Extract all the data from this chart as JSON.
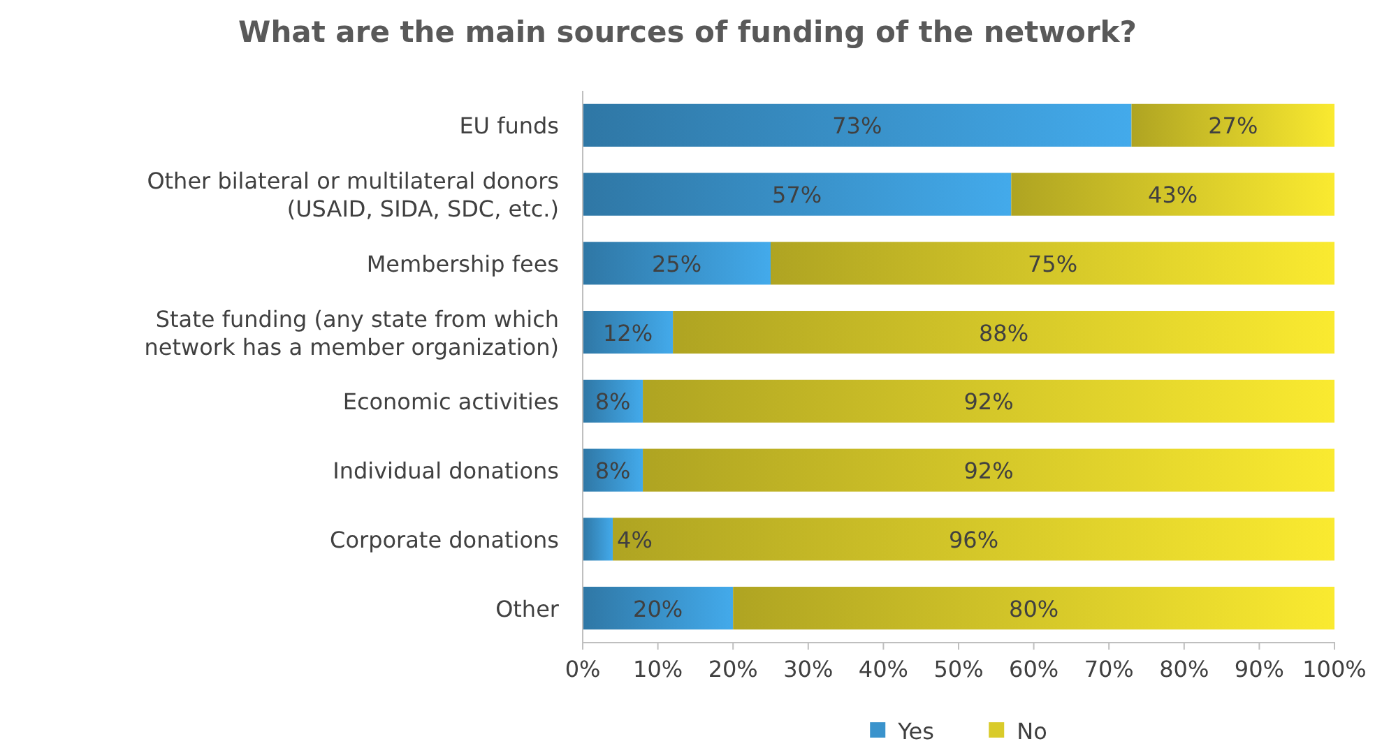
{
  "chart_data": {
    "type": "bar",
    "orientation": "horizontal",
    "stacked": true,
    "title": "What are the main sources of funding of the network?",
    "categories": [
      "EU funds",
      "Other bilateral or multilateral donors (USAID, SIDA, SDC, etc.)",
      "Membership fees",
      "State funding (any state from which network has a member organization)",
      "Economic activities",
      "Individual donations",
      "Corporate donations",
      "Other"
    ],
    "series": [
      {
        "name": "Yes",
        "color": "#3a93cc",
        "values": [
          73,
          57,
          25,
          12,
          8,
          8,
          4,
          20
        ],
        "value_labels": [
          "73%",
          "57%",
          "25%",
          "12%",
          "8%",
          "8%",
          "4%",
          "20%"
        ]
      },
      {
        "name": "No",
        "color": "#d9cb2a",
        "values": [
          27,
          43,
          75,
          88,
          92,
          92,
          96,
          80
        ],
        "value_labels": [
          "27%",
          "43%",
          "75%",
          "88%",
          "92%",
          "92%",
          "96%",
          "80%"
        ]
      }
    ],
    "xlim": [
      0,
      100
    ],
    "xticks": [
      {
        "value": 0,
        "label": "0%"
      },
      {
        "value": 10,
        "label": "10%"
      },
      {
        "value": 20,
        "label": "20%"
      },
      {
        "value": 30,
        "label": "30%"
      },
      {
        "value": 40,
        "label": "40%"
      },
      {
        "value": 50,
        "label": "50%"
      },
      {
        "value": 60,
        "label": "60%"
      },
      {
        "value": 70,
        "label": "70%"
      },
      {
        "value": 80,
        "label": "80%"
      },
      {
        "value": 90,
        "label": "90%"
      },
      {
        "value": 100,
        "label": "100%"
      }
    ],
    "legend": "bottom",
    "grid": false
  }
}
